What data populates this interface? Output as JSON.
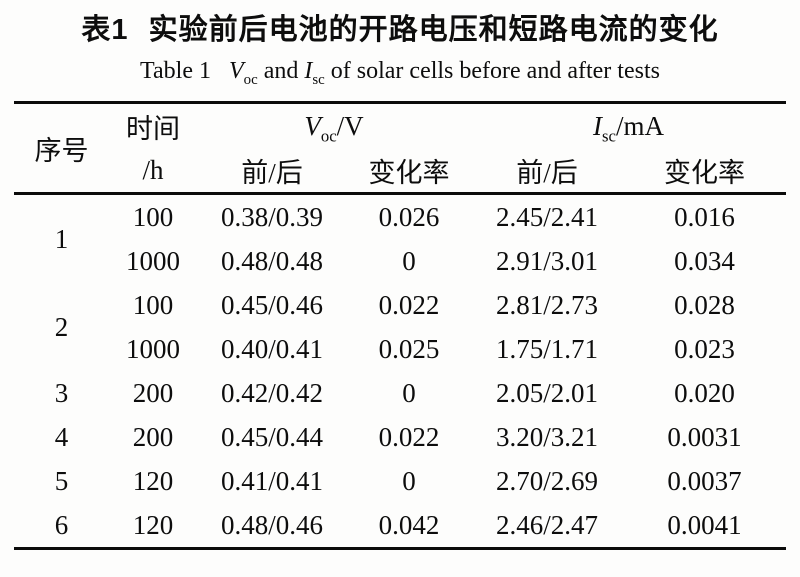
{
  "page": {
    "title_zh": {
      "label": "表1",
      "text": "实验前后电池的开路电压和短路电流的变化"
    },
    "title_en": {
      "label": "Table 1",
      "voc_symbol": "V",
      "voc_sub": "oc",
      "and_word": "and",
      "isc_symbol": "I",
      "isc_sub": "sc",
      "rest": "of solar cells before and after tests"
    }
  },
  "table": {
    "header": {
      "serial": "序号",
      "time_label": "时间",
      "time_unit": "/h",
      "voc": {
        "symbol": "V",
        "sub": "oc",
        "unit": "/V"
      },
      "isc": {
        "symbol": "I",
        "sub": "sc",
        "unit": "/mA"
      },
      "before_after": "前/后",
      "change_rate": "变化率"
    },
    "rows": [
      {
        "serial": "1",
        "time": "100",
        "voc": "0.38/0.39",
        "voc_rate": "0.026",
        "isc": "2.45/2.41",
        "isc_rate": "0.016"
      },
      {
        "serial": "",
        "time": "1000",
        "voc": "0.48/0.48",
        "voc_rate": "0",
        "isc": "2.91/3.01",
        "isc_rate": "0.034"
      },
      {
        "serial": "2",
        "time": "100",
        "voc": "0.45/0.46",
        "voc_rate": "0.022",
        "isc": "2.81/2.73",
        "isc_rate": "0.028"
      },
      {
        "serial": "",
        "time": "1000",
        "voc": "0.40/0.41",
        "voc_rate": "0.025",
        "isc": "1.75/1.71",
        "isc_rate": "0.023"
      },
      {
        "serial": "3",
        "time": "200",
        "voc": "0.42/0.42",
        "voc_rate": "0",
        "isc": "2.05/2.01",
        "isc_rate": "0.020"
      },
      {
        "serial": "4",
        "time": "200",
        "voc": "0.45/0.44",
        "voc_rate": "0.022",
        "isc": "3.20/3.21",
        "isc_rate": "0.0031"
      },
      {
        "serial": "5",
        "time": "120",
        "voc": "0.41/0.41",
        "voc_rate": "0",
        "isc": "2.70/2.69",
        "isc_rate": "0.0037"
      },
      {
        "serial": "6",
        "time": "120",
        "voc": "0.48/0.46",
        "voc_rate": "0.042",
        "isc": "2.46/2.47",
        "isc_rate": "0.0041"
      }
    ]
  }
}
